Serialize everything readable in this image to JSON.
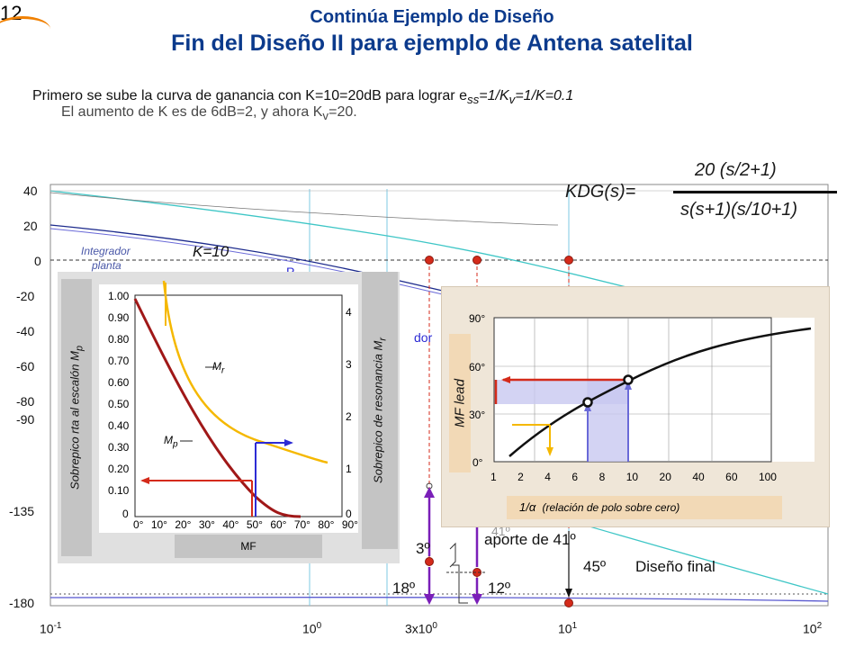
{
  "slide": {
    "number": "12",
    "title_top": "Continúa Ejemplo de Diseño",
    "title_main": "Fin del Diseño II para ejemplo de Antena satelital"
  },
  "intro": {
    "line1_prefix": "Primero se sube la curva de ganancia con K=10=20dB para lograr e",
    "line1_sub1": "ss",
    "line1_mid": "=1/K",
    "line1_sub2": "v",
    "line1_suffix": "=1/K=0.1",
    "line2": "El aumento de K es de 6dB=2, y ahora  K",
    "line2_sub": "v",
    "line2_suffix": "=20."
  },
  "transfer": {
    "lhs": "KDG(s)=",
    "num": "20 (s/2+1)",
    "den": "s(s+1)(s/10+1)"
  },
  "plot": {
    "mag_ticks": [
      "40",
      "20",
      "0",
      "-20",
      "-40",
      "-60",
      "-80"
    ],
    "phase_ticks": [
      "-90",
      "-135",
      "-180"
    ],
    "x_ticks": {
      "a": "10",
      "a_exp": "-1",
      "b": "10",
      "b_exp": "0",
      "c": "3x10",
      "c_exp": "0",
      "d": "10",
      "d_exp": "1",
      "e": "10",
      "e_exp": "2"
    },
    "labels": {
      "k10": "K=10",
      "integrador": "Integrador",
      "planta": "planta",
      "polo_frag": "P",
      "dor_frag": "dor",
      "ang3": "3º",
      "aporte": "aporte de 41º",
      "aporte_frag": "41º",
      "ang45": "45º",
      "diseno": "Diseño final",
      "ang18": "18º",
      "ang12": "12º"
    }
  },
  "left_panel": {
    "y_left_label": "Sobrepico rta al escalón M",
    "y_left_sub": "p",
    "y_right_label": "Sobrepico de resonancia M",
    "y_right_sub": "r",
    "x_label": "MF",
    "yl_ticks": [
      "1.00",
      "0.90",
      "0.80",
      "0.70",
      "0.60",
      "0.50",
      "0.40",
      "0.30",
      "0.20",
      "0.10",
      "0"
    ],
    "yr_ticks": [
      "4",
      "3",
      "2",
      "1",
      "0"
    ],
    "x_ticks": [
      "0°",
      "10°",
      "20°",
      "30°",
      "40°",
      "50°",
      "60°",
      "70°",
      "80°",
      "90°"
    ],
    "mr": "M",
    "mr_sub": "r",
    "mp": "M",
    "mp_sub": "p"
  },
  "right_panel": {
    "y_label": "MF  lead",
    "y_ticks": [
      "90°",
      "60°",
      "30°",
      "0°"
    ],
    "x_ticks": [
      "1",
      "2",
      "4",
      "6",
      "8",
      "10",
      "20",
      "40",
      "60",
      "100"
    ],
    "x_label_sym": "1/α",
    "x_label_text": "(relación de polo sobre cero)"
  },
  "colors": {
    "title": "#0b3a8c",
    "red": "#d42a1a",
    "purple": "#7a1fb8",
    "blue": "#2d2bd4",
    "orange": "#f5a800",
    "cyan": "#3ec6c6",
    "navy": "#1c2a8c"
  }
}
